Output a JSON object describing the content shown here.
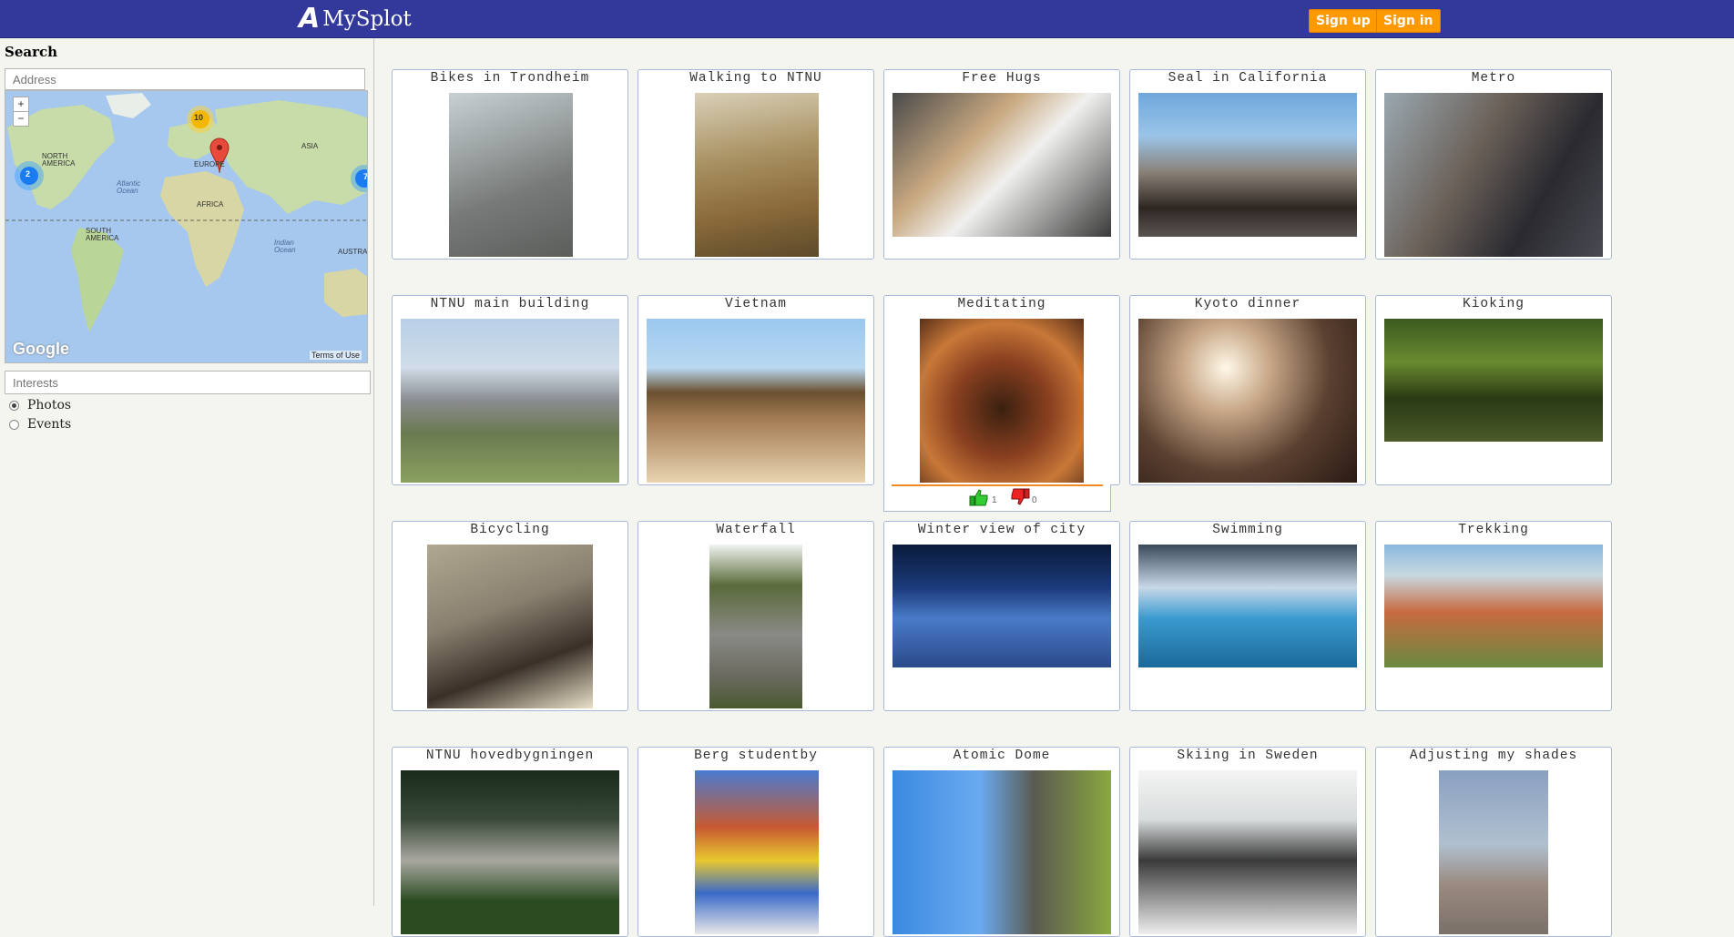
{
  "header": {
    "logo_mark": "A",
    "logo_text": "MySplot",
    "signup_label": "Sign up",
    "signin_label": "Sign in",
    "bg_color": "#33399a",
    "button_color": "#ff9900"
  },
  "sidebar": {
    "search_title": "Search",
    "address_placeholder": "Address",
    "interests_placeholder": "Interests",
    "map": {
      "zoom_in": "+",
      "zoom_out": "−",
      "labels": [
        "NORTH AMERICA",
        "SOUTH AMERICA",
        "EUROPE",
        "AFRICA",
        "ASIA",
        "AUSTRA",
        "Atlantic Ocean",
        "Indian Ocean"
      ],
      "cluster_counts": [
        "10",
        "2",
        "7"
      ],
      "attribution": "Google",
      "terms": "Terms of Use"
    },
    "filters": [
      {
        "label": "Photos",
        "selected": true
      },
      {
        "label": "Events",
        "selected": false
      }
    ]
  },
  "photos": [
    {
      "title": "Bikes in Trondheim"
    },
    {
      "title": "Walking to NTNU"
    },
    {
      "title": "Free Hugs"
    },
    {
      "title": "Seal in California"
    },
    {
      "title": "Metro"
    },
    {
      "title": "NTNU main building"
    },
    {
      "title": "Vietnam"
    },
    {
      "title": "Meditating"
    },
    {
      "title": "Kyoto dinner"
    },
    {
      "title": "Kioking"
    },
    {
      "title": "Bicycling"
    },
    {
      "title": "Waterfall"
    },
    {
      "title": "Winter view of city"
    },
    {
      "title": "Swimming"
    },
    {
      "title": "Trekking"
    },
    {
      "title": "NTNU hovedbygningen"
    },
    {
      "title": "Berg studentby"
    },
    {
      "title": "Atomic Dome"
    },
    {
      "title": "Skiing in Sweden"
    },
    {
      "title": "Adjusting my shades"
    }
  ],
  "rating": {
    "likes": "1",
    "dislikes": "0"
  }
}
